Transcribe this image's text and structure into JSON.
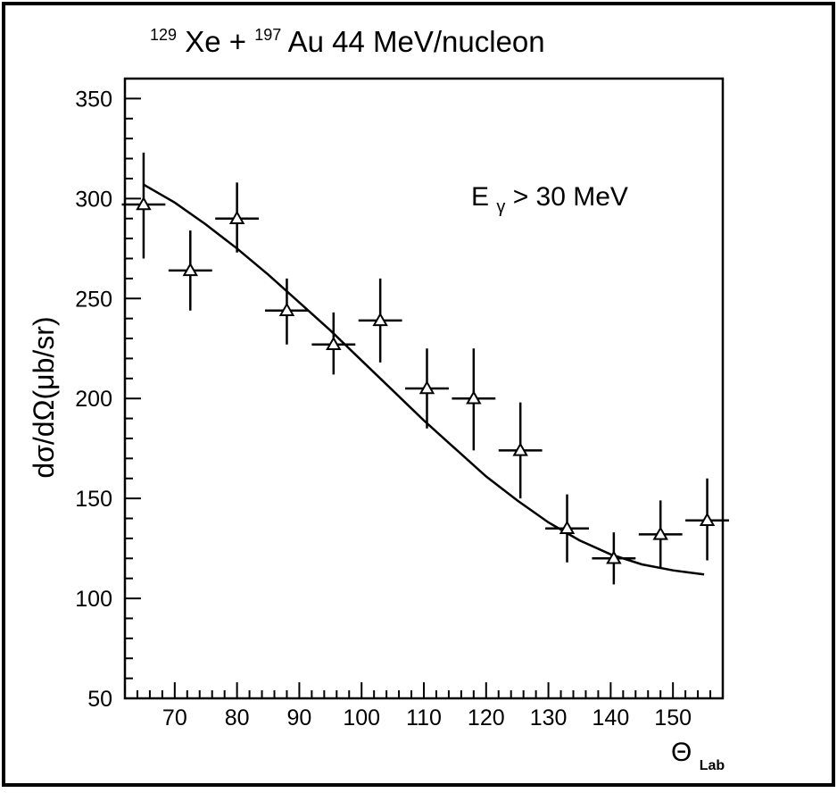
{
  "chart_data": {
    "type": "scatter",
    "title_parts": {
      "a_mass": "129",
      "a_symbol": "Xe + ",
      "b_mass": "197",
      "b_symbol": "Au 44 MeV/nucleon"
    },
    "ylabel": "dσ/dΩ(μb/sr)",
    "xlabel_main": "Θ",
    "xlabel_sub": "Lab",
    "annotation_main": "E",
    "annotation_sub": "γ",
    "annotation_rest": " > 30 MeV",
    "xlim": [
      62,
      158
    ],
    "ylim": [
      50,
      360
    ],
    "x_ticks": [
      70,
      80,
      90,
      100,
      110,
      120,
      130,
      140,
      150
    ],
    "y_ticks": [
      50,
      100,
      150,
      200,
      250,
      300,
      350
    ],
    "points": [
      {
        "x": 65,
        "y": 297,
        "xerr": 3.5,
        "yerr_lo": 27,
        "yerr_hi": 26
      },
      {
        "x": 72.5,
        "y": 264,
        "xerr": 3.5,
        "yerr_lo": 20,
        "yerr_hi": 20
      },
      {
        "x": 80,
        "y": 290,
        "xerr": 3.5,
        "yerr_lo": 17,
        "yerr_hi": 18
      },
      {
        "x": 88,
        "y": 244,
        "xerr": 3.5,
        "yerr_lo": 17,
        "yerr_hi": 16
      },
      {
        "x": 95.5,
        "y": 227,
        "xerr": 3.5,
        "yerr_lo": 15,
        "yerr_hi": 16
      },
      {
        "x": 103,
        "y": 239,
        "xerr": 3.5,
        "yerr_lo": 21,
        "yerr_hi": 21
      },
      {
        "x": 110.5,
        "y": 205,
        "xerr": 3.5,
        "yerr_lo": 20,
        "yerr_hi": 20
      },
      {
        "x": 118,
        "y": 200,
        "xerr": 3.5,
        "yerr_lo": 26,
        "yerr_hi": 25
      },
      {
        "x": 125.5,
        "y": 174,
        "xerr": 3.5,
        "yerr_lo": 24,
        "yerr_hi": 24
      },
      {
        "x": 133,
        "y": 135,
        "xerr": 3.5,
        "yerr_lo": 17,
        "yerr_hi": 17
      },
      {
        "x": 140.5,
        "y": 120,
        "xerr": 3.5,
        "yerr_lo": 13,
        "yerr_hi": 13
      },
      {
        "x": 148,
        "y": 132,
        "xerr": 3.5,
        "yerr_lo": 17,
        "yerr_hi": 17
      },
      {
        "x": 155.5,
        "y": 139,
        "xerr": 3.5,
        "yerr_lo": 20,
        "yerr_hi": 21
      }
    ],
    "fit_curve": [
      {
        "x": 65,
        "y": 307
      },
      {
        "x": 70,
        "y": 298
      },
      {
        "x": 75,
        "y": 287
      },
      {
        "x": 80,
        "y": 275
      },
      {
        "x": 85,
        "y": 262
      },
      {
        "x": 90,
        "y": 248
      },
      {
        "x": 95,
        "y": 234
      },
      {
        "x": 100,
        "y": 219
      },
      {
        "x": 105,
        "y": 204
      },
      {
        "x": 110,
        "y": 189
      },
      {
        "x": 115,
        "y": 175
      },
      {
        "x": 120,
        "y": 161
      },
      {
        "x": 125,
        "y": 149
      },
      {
        "x": 130,
        "y": 138
      },
      {
        "x": 135,
        "y": 129
      },
      {
        "x": 140,
        "y": 122
      },
      {
        "x": 145,
        "y": 117
      },
      {
        "x": 150,
        "y": 114
      },
      {
        "x": 155,
        "y": 112
      }
    ],
    "grid": false,
    "legend": "none"
  }
}
